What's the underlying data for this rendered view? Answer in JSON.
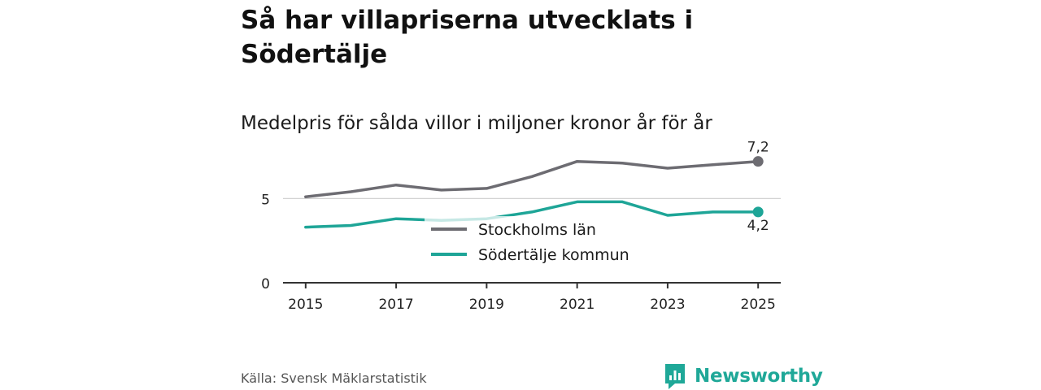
{
  "title": "Så har villapriserna utvecklats i Södertälje",
  "subtitle": "Medelpris för sålda villor i miljoner kronor år för år",
  "source": "Källa: Svensk Mäklarstatistik",
  "brand": "Newsworthy",
  "colors": {
    "stockholm": "#6d6c72",
    "sodertalje": "#1ea597",
    "brand": "#1fa898",
    "grid": "#cccccc",
    "axis": "#333333"
  },
  "chart_data": {
    "type": "line",
    "title": "Så har villapriserna utvecklats i Södertälje",
    "subtitle": "Medelpris för sålda villor i miljoner kronor år för år",
    "xlabel": "",
    "ylabel": "",
    "ylim": [
      0,
      8.1
    ],
    "xlim": [
      2014.5,
      2025.5
    ],
    "yticks": [
      0,
      5
    ],
    "ytick_labels": [
      "0",
      "5"
    ],
    "xticks": [
      2015,
      2017,
      2019,
      2021,
      2023,
      2025
    ],
    "xtick_labels": [
      "2015",
      "2017",
      "2019",
      "2021",
      "2023",
      "2025"
    ],
    "grid": "y-major",
    "legend_position": "center",
    "x": [
      2015,
      2016,
      2017,
      2018,
      2019,
      2020,
      2021,
      2022,
      2023,
      2024,
      2025
    ],
    "series": [
      {
        "name": "Stockholms län",
        "key": "stockholm",
        "values": [
          5.1,
          5.4,
          5.8,
          5.5,
          5.6,
          6.3,
          7.2,
          7.1,
          6.8,
          7.0,
          7.2
        ],
        "end_label": "7,2",
        "end_label_position": "above"
      },
      {
        "name": "Södertälje kommun",
        "key": "sodertalje",
        "values": [
          3.3,
          3.4,
          3.8,
          3.7,
          3.8,
          4.2,
          4.8,
          4.8,
          4.0,
          4.2,
          4.2
        ],
        "end_label": "4,2",
        "end_label_position": "below"
      }
    ]
  }
}
